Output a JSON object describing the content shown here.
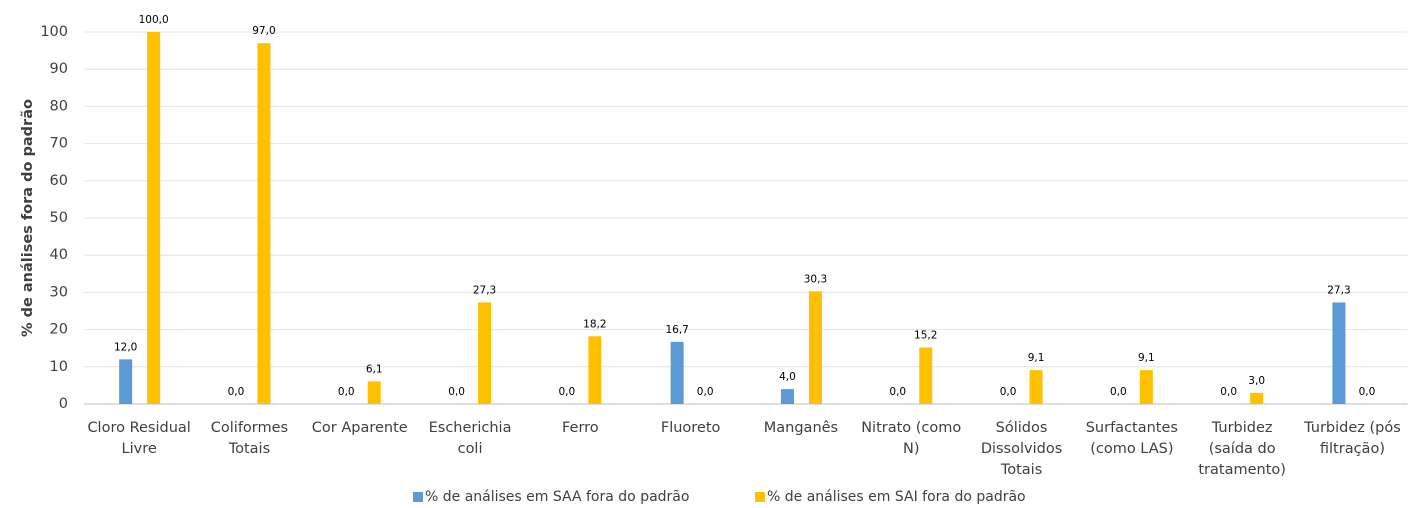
{
  "chart_data": {
    "type": "bar",
    "y_label": "% de análises fora do padrão",
    "categories": [
      "Cloro Residual Livre",
      "Coliformes Totais",
      "Cor Aparente",
      "Escherichia coli",
      "Ferro",
      "Fluoreto",
      "Manganês",
      "Nitrato (como N)",
      "Sólidos Dissolvidos Totais",
      "Surfactantes (como LAS)",
      "Turbidez (saída do tratamento)",
      "Turbidez (pós filtração)"
    ],
    "series": [
      {
        "name": "% de análises em SAA fora do padrão",
        "color": "#5b9bd5",
        "values": [
          12.0,
          0,
          0,
          0,
          0,
          16.7,
          4.0,
          0,
          0,
          0,
          0,
          27.3
        ],
        "value_labels": [
          "12,0",
          "0,0",
          "0,0",
          "0,0",
          "0,0",
          "16,7",
          "4,0",
          "0,0",
          "0,0",
          "0,0",
          "0,0",
          "27,3"
        ]
      },
      {
        "name": "% de análises em SAI fora do padrão",
        "color": "#ffc000",
        "values": [
          100.0,
          97.0,
          6.1,
          27.3,
          18.2,
          0,
          30.3,
          15.2,
          9.1,
          9.1,
          3.0,
          0
        ],
        "value_labels": [
          "100,0",
          "97,0",
          "6,1",
          "27,3",
          "18,2",
          "0,0",
          "30,3",
          "15,2",
          "9,1",
          "9,1",
          "3,0",
          "0,0"
        ]
      }
    ],
    "ylim": [
      0,
      100
    ],
    "yticks": [
      0,
      10,
      20,
      30,
      40,
      50,
      60,
      70,
      80,
      90,
      100
    ],
    "grid": true,
    "legend": "bottom"
  }
}
